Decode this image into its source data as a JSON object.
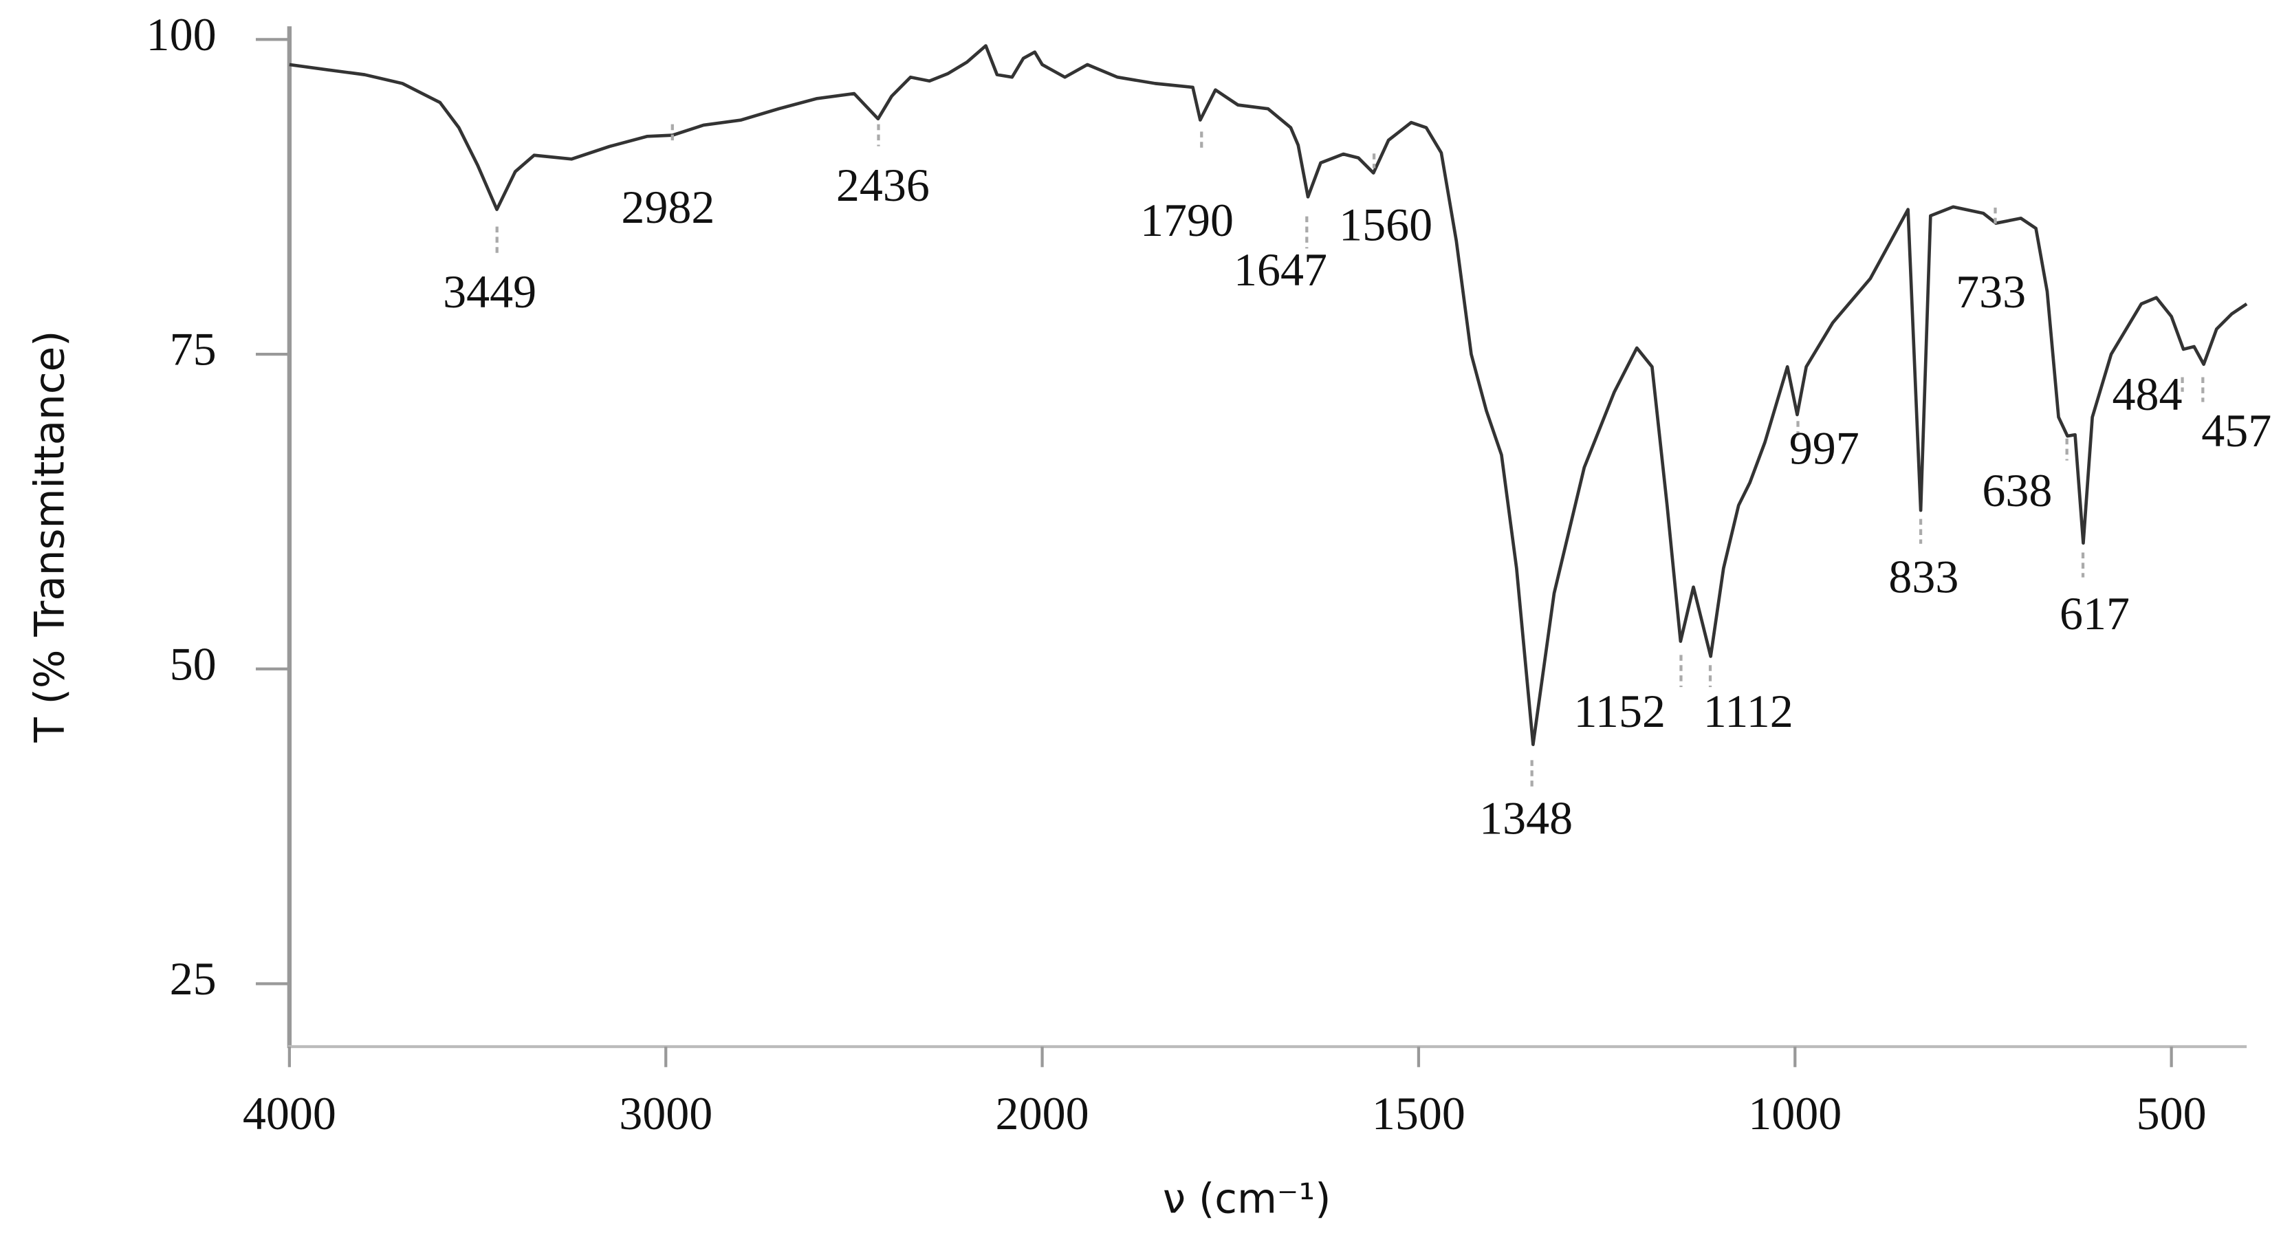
{
  "chart_data": {
    "type": "line",
    "xlabel": "ν (cm⁻¹)",
    "ylabel": "T (% Transmittance)",
    "xlim": [
      4000,
      400
    ],
    "ylim": [
      20,
      100
    ],
    "x_scale_change": 2000,
    "xticks": [
      4000,
      3000,
      2000,
      1500,
      1000,
      500
    ],
    "yticks": [
      25,
      50,
      75,
      100
    ],
    "color": "#333333",
    "x": [
      4000,
      3900,
      3800,
      3700,
      3600,
      3550,
      3500,
      3449,
      3400,
      3350,
      3250,
      3150,
      3050,
      2982,
      2900,
      2800,
      2700,
      2600,
      2500,
      2436,
      2400,
      2350,
      2300,
      2250,
      2200,
      2150,
      2120,
      2080,
      2050,
      2020,
      2000,
      1970,
      1940,
      1900,
      1850,
      1800,
      1790,
      1770,
      1740,
      1700,
      1670,
      1660,
      1647,
      1630,
      1600,
      1580,
      1560,
      1540,
      1510,
      1490,
      1470,
      1450,
      1430,
      1410,
      1390,
      1370,
      1348,
      1320,
      1280,
      1240,
      1210,
      1190,
      1170,
      1152,
      1135,
      1112,
      1095,
      1075,
      1060,
      1040,
      1010,
      997,
      985,
      950,
      900,
      850,
      833,
      820,
      790,
      750,
      733,
      700,
      680,
      665,
      650,
      638,
      628,
      617,
      605,
      580,
      540,
      520,
      500,
      484,
      470,
      457,
      440,
      420,
      400
    ],
    "values": [
      98,
      97.6,
      97.2,
      96.5,
      95,
      93,
      90,
      86.5,
      89.5,
      90.8,
      90.5,
      91.5,
      92.3,
      92.4,
      93.2,
      93.6,
      94.5,
      95.3,
      95.7,
      93.7,
      95.5,
      97,
      96.7,
      97.3,
      98.2,
      99.5,
      97.2,
      97,
      98.5,
      99,
      98,
      97,
      98,
      97,
      96.5,
      96.2,
      93.6,
      96,
      94.8,
      94.5,
      93,
      91.6,
      87.5,
      90.2,
      90.9,
      90.6,
      89.4,
      92,
      93.4,
      93,
      91,
      84,
      75,
      70.5,
      67,
      58,
      44,
      56,
      66,
      72,
      75.5,
      74,
      63,
      52.2,
      56.5,
      51,
      58,
      63,
      64.8,
      68,
      74,
      70.2,
      74,
      77.5,
      81,
      86.5,
      62.6,
      86,
      86.7,
      86.2,
      85.4,
      85.8,
      85,
      80,
      70,
      68.5,
      68.6,
      60,
      70,
      75,
      79,
      79.5,
      78,
      75.4,
      75.6,
      74.2,
      77,
      78.2,
      79
    ],
    "peak_labels": [
      "3449",
      "2982",
      "2436",
      "1790",
      "1647",
      "1560",
      "1348",
      "1152",
      "1112",
      "997",
      "833",
      "733",
      "638",
      "617",
      "484",
      "457"
    ]
  }
}
